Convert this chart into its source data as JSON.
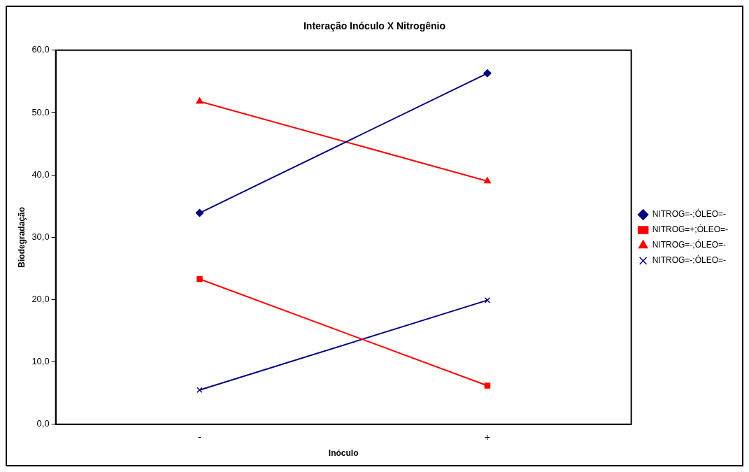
{
  "chart_data": {
    "type": "line",
    "title": "Interação Inóculo X Nitrogênio",
    "xlabel": "Inóculo",
    "ylabel": "Biodegradação",
    "categories": [
      "-",
      "+"
    ],
    "series": [
      {
        "name": "NITROG=-;ÓLEO=-",
        "color": "#000080",
        "marker": "diamond",
        "values": [
          33.9,
          56.3
        ]
      },
      {
        "name": "NITROG=+;ÓLEO=-",
        "color": "#ff0000",
        "marker": "square",
        "values": [
          23.3,
          6.2
        ]
      },
      {
        "name": "NITROG=-;ÓLEO=-",
        "color": "#ff0000",
        "marker": "triangle",
        "values": [
          51.8,
          39.0
        ]
      },
      {
        "name": "NITROG=-;ÓLEO=-",
        "color": "#000080",
        "marker": "cross",
        "values": [
          5.5,
          19.9
        ]
      }
    ],
    "ylim": [
      0,
      60
    ],
    "yticks": [
      {
        "value": 0,
        "label": "0,0"
      },
      {
        "value": 10,
        "label": "10,0"
      },
      {
        "value": 20,
        "label": "20,0"
      },
      {
        "value": 30,
        "label": "30,0"
      },
      {
        "value": 40,
        "label": "40,0"
      },
      {
        "value": 50,
        "label": "50,0"
      },
      {
        "value": 60,
        "label": "60,0"
      }
    ],
    "grid": false,
    "legend": "right",
    "line_style": "solid"
  }
}
